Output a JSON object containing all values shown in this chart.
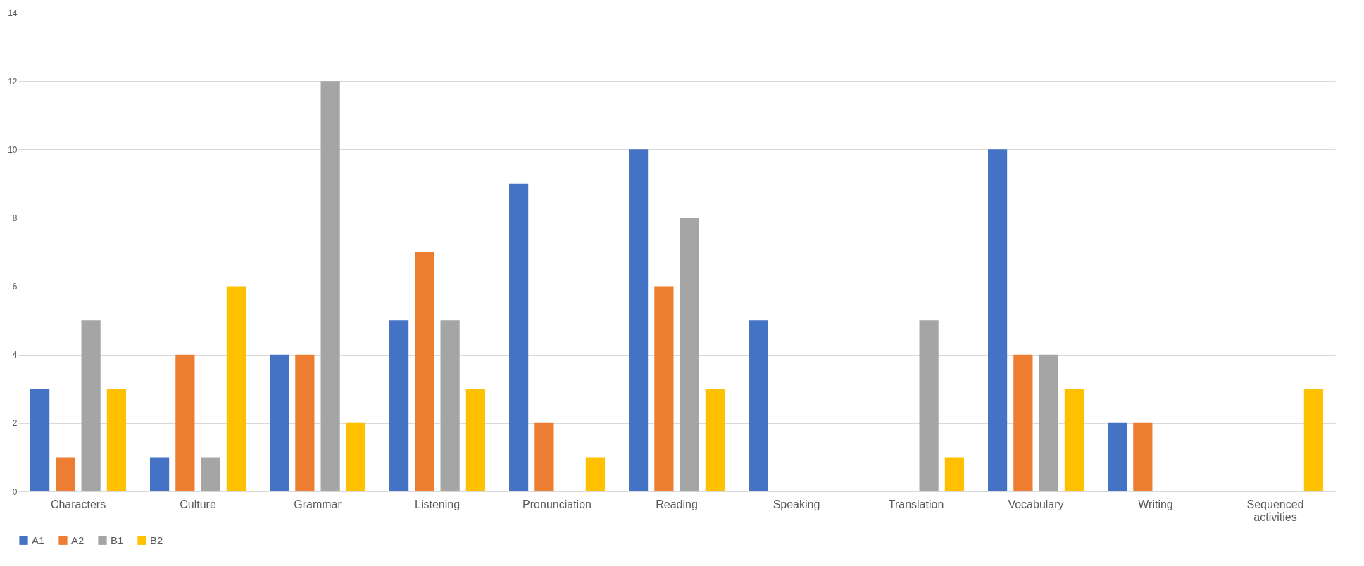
{
  "chart_data": {
    "type": "bar",
    "categories": [
      "Characters",
      "Culture",
      "Grammar",
      "Listening",
      "Pronunciation",
      "Reading",
      "Speaking",
      "Translation",
      "Vocabulary",
      "Writing",
      "Sequenced activities"
    ],
    "series": [
      {
        "name": "A1",
        "color": "#4472c4",
        "values": [
          3,
          1,
          4,
          5,
          9,
          10,
          5,
          0,
          10,
          2,
          0
        ]
      },
      {
        "name": "A2",
        "color": "#ed7d31",
        "values": [
          1,
          4,
          4,
          7,
          2,
          6,
          0,
          0,
          4,
          2,
          0
        ]
      },
      {
        "name": "B1",
        "color": "#a5a5a5",
        "values": [
          5,
          1,
          12,
          5,
          0,
          8,
          0,
          5,
          4,
          0,
          0
        ]
      },
      {
        "name": "B2",
        "color": "#ffc000",
        "values": [
          3,
          6,
          2,
          3,
          1,
          3,
          0,
          1,
          3,
          0,
          3
        ]
      }
    ],
    "ylim": [
      0,
      14
    ],
    "yticks": [
      0,
      2,
      4,
      6,
      8,
      10,
      12,
      14
    ],
    "grid": "y",
    "legend": "bottom"
  }
}
